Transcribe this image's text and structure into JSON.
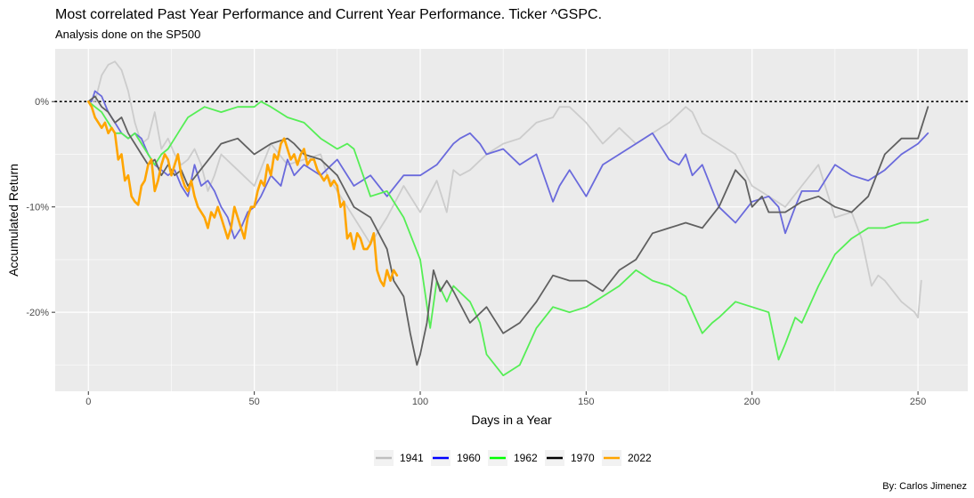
{
  "title": "Most correlated Past Year Performance and Current Year Performance. Ticker ^GSPC.",
  "subtitle": "Analysis done on the SP500",
  "caption": "By: Carlos Jimenez",
  "chart_data": {
    "type": "line",
    "xlabel": "Days in a Year",
    "ylabel": "Accumulated Return",
    "xlim": [
      -10,
      265
    ],
    "ylim": [
      -27.5,
      5
    ],
    "x_ticks": [
      0,
      50,
      100,
      150,
      200,
      250
    ],
    "x_tick_labels": [
      "0",
      "50",
      "100",
      "150",
      "200",
      "250"
    ],
    "y_ticks": [
      0,
      -10,
      -20
    ],
    "y_tick_labels": [
      "0%",
      "-10%",
      "-20%"
    ],
    "grid": true,
    "legend_position": "bottom",
    "reference_line": {
      "y": 0,
      "style": "dotted"
    },
    "series": [
      {
        "name": "1941",
        "color": "#cccccc",
        "x": [
          2,
          4,
          6,
          8,
          10,
          12,
          14,
          16,
          18,
          20,
          22,
          24,
          26,
          28,
          30,
          32,
          34,
          36,
          38,
          40,
          45,
          50,
          55,
          60,
          65,
          70,
          72,
          75,
          78,
          80,
          85,
          90,
          95,
          100,
          105,
          108,
          110,
          112,
          115,
          120,
          125,
          130,
          135,
          140,
          142,
          145,
          150,
          155,
          160,
          165,
          170,
          175,
          180,
          182,
          185,
          190,
          195,
          200,
          205,
          210,
          215,
          220,
          225,
          230,
          233,
          236,
          238,
          240,
          245,
          249,
          250,
          251
        ],
        "values": [
          0,
          2.5,
          3.5,
          3.8,
          3,
          1,
          -2,
          -4,
          -3.5,
          -1,
          -4.5,
          -3.5,
          -5,
          -6,
          -5.5,
          -4.5,
          -6,
          -8.5,
          -7,
          -5,
          -6.5,
          -8,
          -4,
          -6,
          -5.5,
          -5,
          -7,
          -8.5,
          -10,
          -11,
          -13.5,
          -11,
          -8,
          -10.5,
          -7.5,
          -10.5,
          -6.5,
          -7,
          -6.5,
          -5,
          -4,
          -3.5,
          -2,
          -1.5,
          -0.5,
          -0.5,
          -2,
          -4,
          -2.5,
          -4,
          -3,
          -2,
          -0.5,
          -1,
          -3,
          -4,
          -5,
          -8,
          -9,
          -10,
          -8,
          -6,
          -11,
          -10.5,
          -13,
          -17.5,
          -16.5,
          -17,
          -19,
          -20,
          -20.5,
          -17
        ]
      },
      {
        "name": "1960",
        "color": "#6a6adc",
        "x": [
          0,
          1,
          2,
          4,
          6,
          8,
          10,
          12,
          14,
          16,
          18,
          20,
          22,
          24,
          26,
          28,
          30,
          32,
          34,
          36,
          38,
          40,
          42,
          44,
          46,
          48,
          50,
          52,
          55,
          58,
          60,
          62,
          65,
          70,
          75,
          80,
          85,
          90,
          95,
          100,
          105,
          110,
          112,
          115,
          118,
          120,
          125,
          130,
          135,
          140,
          142,
          145,
          150,
          155,
          160,
          165,
          170,
          175,
          178,
          180,
          182,
          185,
          190,
          195,
          200,
          205,
          208,
          210,
          213,
          215,
          220,
          225,
          230,
          235,
          240,
          245,
          250,
          253
        ],
        "values": [
          0,
          0,
          1,
          0.5,
          -1,
          -2,
          -3,
          -3.5,
          -3,
          -3.5,
          -5,
          -6,
          -6.5,
          -7,
          -6.5,
          -8,
          -9,
          -6,
          -8,
          -7.5,
          -8.5,
          -10,
          -11,
          -13,
          -12,
          -10.5,
          -10,
          -9,
          -7,
          -8,
          -5.5,
          -7,
          -6,
          -7,
          -5.5,
          -8,
          -7,
          -9,
          -7,
          -7,
          -6,
          -4,
          -3.5,
          -3,
          -4,
          -5,
          -4.5,
          -6,
          -5,
          -9.5,
          -8,
          -6.5,
          -9,
          -6,
          -5,
          -4,
          -3,
          -5.5,
          -6,
          -5,
          -7,
          -6,
          -10,
          -11.5,
          -9.5,
          -9,
          -10,
          -12.5,
          -10,
          -8.5,
          -8.5,
          -6,
          -7,
          -7.5,
          -6.5,
          -5,
          -4,
          -3
        ]
      },
      {
        "name": "1962",
        "color": "#55ee55",
        "x": [
          0,
          2,
          4,
          6,
          8,
          10,
          12,
          14,
          16,
          18,
          20,
          22,
          24,
          26,
          28,
          30,
          35,
          40,
          45,
          50,
          52,
          55,
          60,
          65,
          70,
          75,
          78,
          80,
          85,
          90,
          95,
          100,
          103,
          105,
          108,
          110,
          115,
          118,
          120,
          125,
          130,
          135,
          140,
          145,
          150,
          155,
          160,
          165,
          170,
          175,
          180,
          185,
          188,
          190,
          195,
          200,
          205,
          208,
          210,
          213,
          215,
          220,
          225,
          230,
          235,
          240,
          245,
          250,
          253
        ],
        "values": [
          0,
          -0.5,
          -1,
          -2,
          -3,
          -3,
          -3.5,
          -3,
          -4,
          -5,
          -6,
          -5,
          -4.5,
          -3.5,
          -2.5,
          -1.5,
          -0.5,
          -1,
          -0.5,
          -0.5,
          0,
          -0.5,
          -1.5,
          -2,
          -3.5,
          -4.5,
          -4,
          -4.5,
          -9,
          -8.5,
          -11,
          -15,
          -21.5,
          -17,
          -19,
          -17.5,
          -19,
          -21,
          -24,
          -26,
          -25,
          -21.5,
          -19.5,
          -20,
          -19.5,
          -18.5,
          -17.5,
          -16,
          -17,
          -17.5,
          -18.5,
          -22,
          -21,
          -20.5,
          -19,
          -19.5,
          -20,
          -24.5,
          -23,
          -20.5,
          -21,
          -17.5,
          -14.5,
          -13,
          -12,
          -12,
          -11.5,
          -11.5,
          -11.2
        ]
      },
      {
        "name": "1970",
        "color": "#606060",
        "x": [
          0,
          2,
          4,
          6,
          8,
          10,
          12,
          14,
          16,
          18,
          20,
          22,
          24,
          26,
          28,
          30,
          35,
          40,
          45,
          50,
          55,
          60,
          62,
          65,
          70,
          75,
          80,
          85,
          90,
          92,
          95,
          97,
          99,
          100,
          102,
          104,
          106,
          108,
          110,
          115,
          120,
          125,
          130,
          135,
          140,
          145,
          150,
          155,
          160,
          165,
          170,
          175,
          180,
          185,
          190,
          195,
          198,
          200,
          203,
          205,
          208,
          210,
          215,
          220,
          225,
          230,
          235,
          240,
          245,
          250,
          253
        ],
        "values": [
          0,
          0.5,
          -0.5,
          -1,
          -2,
          -1.5,
          -3,
          -4,
          -5,
          -6,
          -5.5,
          -7,
          -6,
          -7,
          -6.5,
          -8,
          -6,
          -4,
          -3.5,
          -5,
          -4,
          -3.5,
          -4,
          -5,
          -5.5,
          -7,
          -10,
          -11,
          -14,
          -17,
          -18.5,
          -22,
          -25,
          -24,
          -21,
          -16,
          -18,
          -17,
          -18,
          -21,
          -19.5,
          -22,
          -21,
          -19,
          -16.5,
          -17,
          -17,
          -18,
          -16,
          -15,
          -12.5,
          -12,
          -11.5,
          -12,
          -10,
          -6.5,
          -7.5,
          -10,
          -9,
          -10.5,
          -10.5,
          -10.5,
          -9.5,
          -9,
          -10,
          -10.5,
          -9,
          -5,
          -3.5,
          -3.5,
          -0.5
        ]
      },
      {
        "name": "2022",
        "color": "#ffa500",
        "x": [
          0,
          1,
          2,
          3,
          4,
          5,
          6,
          7,
          8,
          9,
          10,
          11,
          12,
          13,
          14,
          15,
          16,
          17,
          18,
          19,
          20,
          21,
          22,
          23,
          24,
          25,
          26,
          27,
          28,
          29,
          30,
          31,
          32,
          33,
          34,
          35,
          36,
          37,
          38,
          39,
          40,
          41,
          42,
          43,
          44,
          45,
          46,
          47,
          48,
          49,
          50,
          51,
          52,
          53,
          54,
          55,
          56,
          57,
          58,
          59,
          60,
          61,
          62,
          63,
          64,
          65,
          66,
          67,
          68,
          69,
          70,
          71,
          72,
          73,
          74,
          75,
          76,
          77,
          78,
          79,
          80,
          81,
          82,
          83,
          84,
          85,
          86,
          87,
          88,
          89,
          90,
          91,
          92,
          93
        ],
        "values": [
          0,
          -0.5,
          -1.5,
          -2,
          -2.5,
          -2,
          -3,
          -2.5,
          -3,
          -5.5,
          -5,
          -7.5,
          -7,
          -9,
          -9.5,
          -9.8,
          -8,
          -7.5,
          -6,
          -5.5,
          -8.5,
          -7.5,
          -6,
          -5,
          -5.5,
          -7,
          -6,
          -5,
          -7,
          -8,
          -8.5,
          -7.5,
          -9,
          -10,
          -10.5,
          -11,
          -12,
          -10.5,
          -11,
          -10,
          -11,
          -12,
          -13,
          -12,
          -10,
          -11,
          -12,
          -13,
          -11,
          -10,
          -10,
          -8.5,
          -7.5,
          -8,
          -6,
          -7,
          -5,
          -5.5,
          -4,
          -3.5,
          -4.5,
          -5.5,
          -5,
          -6,
          -5,
          -4.5,
          -6,
          -5.5,
          -5.5,
          -6.5,
          -7,
          -7.5,
          -7,
          -8,
          -7.5,
          -8,
          -10,
          -9.5,
          -13,
          -12.5,
          -14,
          -12.5,
          -13,
          -14,
          -14,
          -13.5,
          -12.5,
          -16,
          -17,
          -17.5,
          -16,
          -17,
          -16,
          -16.5
        ]
      }
    ]
  }
}
